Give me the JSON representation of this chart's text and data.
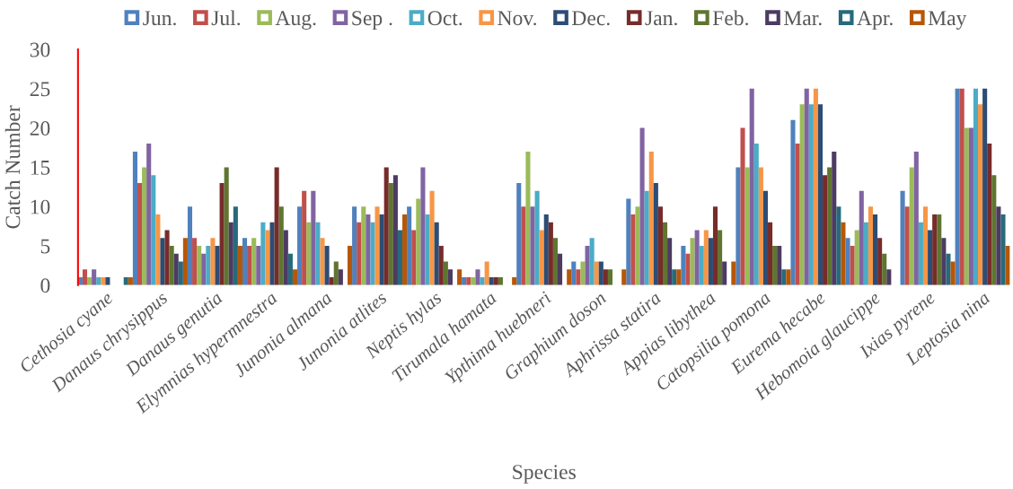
{
  "chart_data": {
    "type": "bar",
    "xlabel": "Species",
    "ylabel": "Catch Number",
    "categories": [
      "Cethosia cyane",
      "Danaus chrysippus",
      "Danaus genutia",
      "Elymnias hypermnestra",
      "Junonia almana",
      "Junonia atlites",
      "Neptis hylas",
      "Tirumala hamata",
      "Ypthima huebneri",
      "Graphium doson",
      "Aphrissa statira",
      "Appias libythea",
      "Catopsilia pomona",
      "Eurema hecabe",
      "Hebomoia glaucippe",
      "Ixias pyrene",
      "Leptosia nina"
    ],
    "ylim": [
      0,
      30
    ],
    "yticks": [
      0,
      5,
      10,
      15,
      20,
      25,
      30
    ],
    "grid": false,
    "legend": "top",
    "marker": "square",
    "series": [
      {
        "name": "Jun.",
        "color": "#4f81bd",
        "values": [
          1,
          17,
          10,
          6,
          10,
          10,
          10,
          1,
          13,
          3,
          11,
          5,
          15,
          21,
          6,
          12,
          25
        ]
      },
      {
        "name": "Jul.",
        "color": "#c0504d",
        "values": [
          2,
          13,
          6,
          5,
          12,
          8,
          7,
          1,
          10,
          2,
          9,
          4,
          20,
          18,
          5,
          10,
          25
        ]
      },
      {
        "name": "Aug.",
        "color": "#9bbb59",
        "values": [
          1,
          15,
          5,
          6,
          8,
          10,
          11,
          1,
          17,
          3,
          10,
          6,
          15,
          23,
          7,
          15,
          20
        ]
      },
      {
        "name": "Sep .",
        "color": "#8064a2",
        "values": [
          2,
          18,
          4,
          5,
          12,
          9,
          15,
          2,
          10,
          5,
          20,
          7,
          25,
          25,
          12,
          17,
          20
        ]
      },
      {
        "name": "Oct.",
        "color": "#4bacc6",
        "values": [
          1,
          14,
          5,
          8,
          8,
          8,
          9,
          1,
          12,
          6,
          12,
          5,
          18,
          23,
          8,
          8,
          25
        ]
      },
      {
        "name": "Nov.",
        "color": "#f79646",
        "values": [
          1,
          9,
          6,
          7,
          6,
          10,
          12,
          3,
          7,
          3,
          17,
          7,
          15,
          25,
          10,
          10,
          23
        ]
      },
      {
        "name": "Dec.",
        "color": "#2c4d75",
        "values": [
          1,
          6,
          5,
          8,
          5,
          9,
          8,
          1,
          9,
          3,
          13,
          6,
          12,
          23,
          9,
          7,
          25
        ]
      },
      {
        "name": "Jan.",
        "color": "#772c2a",
        "values": [
          0,
          7,
          13,
          15,
          1,
          15,
          5,
          1,
          8,
          2,
          10,
          10,
          8,
          14,
          6,
          9,
          18
        ]
      },
      {
        "name": "Feb.",
        "color": "#5f7530",
        "values": [
          0,
          5,
          15,
          10,
          3,
          13,
          3,
          1,
          6,
          2,
          8,
          7,
          5,
          15,
          4,
          9,
          14
        ]
      },
      {
        "name": "Mar.",
        "color": "#4d3b62",
        "values": [
          0,
          4,
          8,
          7,
          2,
          14,
          2,
          0,
          4,
          0,
          6,
          3,
          5,
          17,
          2,
          6,
          10
        ]
      },
      {
        "name": "Apr.",
        "color": "#276a7c",
        "values": [
          1,
          3,
          10,
          4,
          0,
          7,
          0,
          0,
          0,
          0,
          2,
          0,
          2,
          10,
          0,
          4,
          9
        ]
      },
      {
        "name": "May",
        "color": "#b65708",
        "values": [
          1,
          6,
          5,
          2,
          5,
          9,
          2,
          1,
          2,
          2,
          2,
          3,
          2,
          8,
          0,
          3,
          5
        ]
      }
    ]
  }
}
